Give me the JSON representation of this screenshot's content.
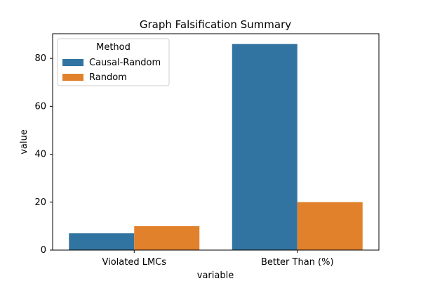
{
  "chart_data": {
    "type": "bar",
    "title": "Graph Falsification Summary",
    "xlabel": "variable",
    "ylabel": "value",
    "categories": [
      "Violated LMCs",
      "Better Than (%)"
    ],
    "series": [
      {
        "name": "Causal-Random",
        "color": "#3274a1",
        "values": [
          7,
          86
        ]
      },
      {
        "name": "Random",
        "color": "#e1812c",
        "values": [
          10,
          20
        ]
      }
    ],
    "ylim": [
      0,
      90.3
    ],
    "yticks": [
      0,
      20,
      40,
      60,
      80
    ],
    "grid": false,
    "legend": {
      "title": "Method",
      "placement": "top-left"
    }
  }
}
